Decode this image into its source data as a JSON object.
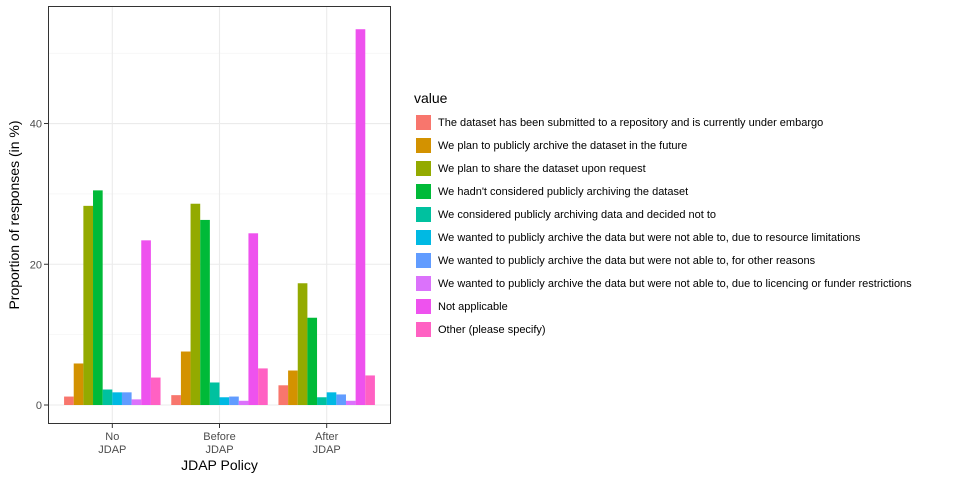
{
  "chart_data": {
    "type": "bar",
    "xlabel": "JDAP Policy",
    "ylabel": "Proportion of responses (in %)",
    "ylim": [
      -2.7,
      56.7
    ],
    "yticks": [
      0,
      20,
      40
    ],
    "categories": [
      {
        "line1": "No",
        "line2": "JDAP"
      },
      {
        "line1": "Before",
        "line2": "JDAP"
      },
      {
        "line1": "After",
        "line2": "JDAP"
      }
    ],
    "legend_title": "value",
    "legend_position": "right",
    "grid": true,
    "series": [
      {
        "name": "The dataset has been submitted to a repository and is currently under embargo",
        "color": "#F8766D",
        "values": [
          1.2,
          1.4,
          2.8
        ]
      },
      {
        "name": "We plan to publicly archive the dataset in the future",
        "color": "#D39200",
        "values": [
          5.9,
          7.6,
          4.9
        ]
      },
      {
        "name": "We plan to share the dataset upon request",
        "color": "#93AA00",
        "values": [
          28.3,
          28.6,
          17.3
        ]
      },
      {
        "name": "We hadn't considered publicly archiving the dataset",
        "color": "#00BA38",
        "values": [
          30.5,
          26.3,
          12.4
        ]
      },
      {
        "name": "We considered publicly archiving data and decided not to",
        "color": "#00C19F",
        "values": [
          2.2,
          3.2,
          1.1
        ]
      },
      {
        "name": "We wanted to publicly archive the data but were not able to, due to resource limitations",
        "color": "#00B9E3",
        "values": [
          1.8,
          1.1,
          1.8
        ]
      },
      {
        "name": "We wanted to publicly archive the data but were not able to, for other reasons",
        "color": "#619CFF",
        "values": [
          1.8,
          1.2,
          1.5
        ]
      },
      {
        "name": "We wanted to publicly archive the data but were not able to, due to licencing or funder restrictions",
        "color": "#DB72FB",
        "values": [
          0.8,
          0.6,
          0.6
        ]
      },
      {
        "name": "Not applicable",
        "color": "#EE52EE",
        "values": [
          23.4,
          24.4,
          53.4
        ]
      },
      {
        "name": "Other (please specify)",
        "color": "#FF61C3",
        "values": [
          3.9,
          5.2,
          4.2
        ]
      }
    ]
  }
}
